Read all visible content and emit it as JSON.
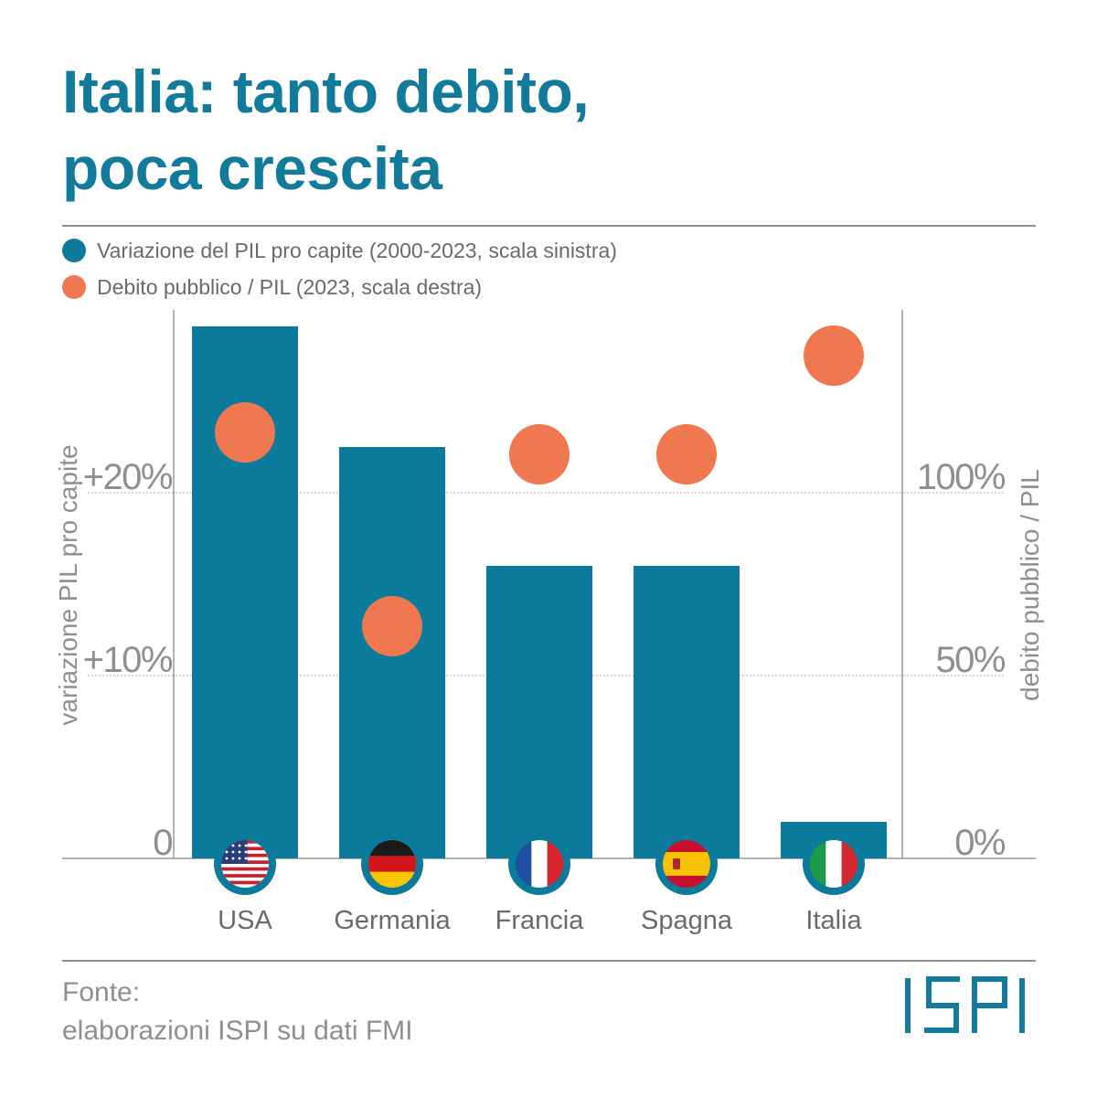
{
  "title_line1": "Italia: tanto debito,",
  "title_line2": "poca crescita",
  "legend": [
    {
      "label": "Variazione del PIL pro capite (2000-2023, scala sinistra)",
      "color": "#0b7a9b"
    },
    {
      "label": "Debito pubblico / PIL (2023, scala destra)",
      "color": "#f07850"
    }
  ],
  "chart_data": {
    "type": "bar",
    "categories": [
      "USA",
      "Germania",
      "Francia",
      "Spagna",
      "Italia"
    ],
    "series": [
      {
        "name": "Variazione del PIL pro capite (2000-2023, scala sinistra)",
        "type": "bar",
        "axis": "left",
        "color": "#0b7a9b",
        "values": [
          29.1,
          22.5,
          16,
          16,
          2
        ]
      },
      {
        "name": "Debito pubblico / PIL (2023, scala destra)",
        "type": "scatter",
        "axis": "right",
        "color": "#f07850",
        "values": [
          116.5,
          63.5,
          110.5,
          110.5,
          137.5
        ]
      }
    ],
    "y_left": {
      "label": "variazione PIL pro capite",
      "ylim": [
        0,
        30
      ],
      "ticks": [
        0,
        10,
        20
      ],
      "tick_labels": [
        "0",
        "+10%",
        "+20%"
      ]
    },
    "y_right": {
      "label": "debito pubblico / PIL",
      "ylim": [
        0,
        150
      ],
      "ticks": [
        0,
        50,
        100
      ],
      "tick_labels": [
        "0%",
        "50%",
        "100%"
      ]
    },
    "grid": true,
    "legend_position": "top"
  },
  "flags": [
    "us-flag-icon",
    "germany-flag-icon",
    "france-flag-icon",
    "spain-flag-icon",
    "italy-flag-icon"
  ],
  "source_line1": "Fonte:",
  "source_line2": "elaborazioni ISPI su dati FMI",
  "logo_text": "ISPI",
  "colors": {
    "accent": "#127a9a",
    "bar": "#0b7a9b",
    "dot": "#f07850",
    "axis_text": "#8f8f8f"
  }
}
